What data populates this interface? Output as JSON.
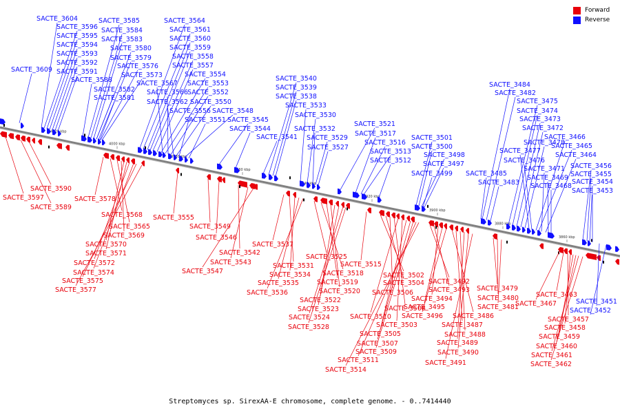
{
  "legend": [
    {
      "label": "Forward",
      "color": "#e8000b"
    },
    {
      "label": "Reverse",
      "color": "#1010ff"
    }
  ],
  "caption": "Streptomyces sp. SirexAA-E chromosome, complete genome. - 0..7414440",
  "colors": {
    "forward": "#e8000b",
    "reverse": "#1010ff",
    "backbone": "#808080"
  },
  "scale_ticks": [
    "4020 kbp",
    "4000 kbp",
    "3980 kbp",
    "3960 kbp",
    "3940 kbp",
    "3920 kbp",
    "3900 kbp",
    "3880 kbp",
    "3860 kbp"
  ],
  "reverse_labels": [
    "SACTE_3604",
    "SACTE_3596",
    "SACTE_3595",
    "SACTE_3594",
    "SACTE_3593",
    "SACTE_3592",
    "SACTE_3591",
    "SACTE_3609",
    "SACTE_3588",
    "SACTE_3585",
    "SACTE_3584",
    "SACTE_3583",
    "SACTE_3580",
    "SACTE_3579",
    "SACTE_3576",
    "SACTE_3573",
    "SACTE_3582",
    "SACTE_3581",
    "SACTE_3564",
    "SACTE_3561",
    "SACTE_3560",
    "SACTE_3559",
    "SACTE_3558",
    "SACTE_3557",
    "SACTE_3554",
    "SACTE_3567",
    "SACTE_3553",
    "SACTE_3566",
    "SACTE_3552",
    "SACTE_3562",
    "SACTE_3550",
    "SACTE_3556",
    "SACTE_3548",
    "SACTE_3551",
    "SACTE_3545",
    "SACTE_3544",
    "SACTE_3541",
    "SACTE_3540",
    "SACTE_3539",
    "SACTE_3538",
    "SACTE_3533",
    "SACTE_3530",
    "SACTE_3532",
    "SACTE_3529",
    "SACTE_3527",
    "SACTE_3521",
    "SACTE_3517",
    "SACTE_3516",
    "SACTE_3513",
    "SACTE_3512",
    "SACTE_3501",
    "SACTE_3500",
    "SACTE_3498",
    "SACTE_3497",
    "SACTE_3499",
    "SACTE_3484",
    "SACTE_3482",
    "SACTE_3475",
    "SACTE_3474",
    "SACTE_3473",
    "SACTE_3472",
    "SACTE_3478",
    "SACTE_3477",
    "SACTE_3476",
    "SACTE_3466",
    "SACTE_3465",
    "SACTE_3464",
    "SACTE_3485",
    "SACTE_3471",
    "SACTE_3483",
    "SACTE_3469",
    "SACTE_3468",
    "SACTE_3456",
    "SACTE_3455",
    "SACTE_3454",
    "SACTE_3453",
    "SACTE_3451",
    "SACTE_3452"
  ],
  "forward_labels": [
    "SACTE_3590",
    "SACTE_3597",
    "SACTE_3589",
    "SACTE_3578",
    "SACTE_3568",
    "SACTE_3565",
    "SACTE_3569",
    "SACTE_3570",
    "SACTE_3571",
    "SACTE_3572",
    "SACTE_3574",
    "SACTE_3575",
    "SACTE_3577",
    "SACTE_3555",
    "SACTE_3549",
    "SACTE_3546",
    "SACTE_3542",
    "SACTE_3543",
    "SACTE_3547",
    "SACTE_3537",
    "SACTE_3531",
    "SACTE_3534",
    "SACTE_3535",
    "SACTE_3536",
    "SACTE_3525",
    "SACTE_3518",
    "SACTE_3519",
    "SACTE_3520",
    "SACTE_3522",
    "SACTE_3523",
    "SACTE_3524",
    "SACTE_3528",
    "SACTE_3515",
    "SACTE_3502",
    "SACTE_3504",
    "SACTE_3506",
    "SACTE_3508",
    "SACTE_3510",
    "SACTE_3503",
    "SACTE_3505",
    "SACTE_3507",
    "SACTE_3509",
    "SACTE_3511",
    "SACTE_3514",
    "SACTE_3492",
    "SACTE_3493",
    "SACTE_3494",
    "SACTE_3495",
    "SACTE_3496",
    "SACTE_3486",
    "SACTE_3487",
    "SACTE_3488",
    "SACTE_3489",
    "SACTE_3490",
    "SACTE_3491",
    "SACTE_3479",
    "SACTE_3480",
    "SACTE_3481",
    "SACTE_3467",
    "SACTE_3463",
    "SACTE_3457",
    "SACTE_3458",
    "SACTE_3459",
    "SACTE_3460",
    "SACTE_3461",
    "SACTE_3462"
  ]
}
